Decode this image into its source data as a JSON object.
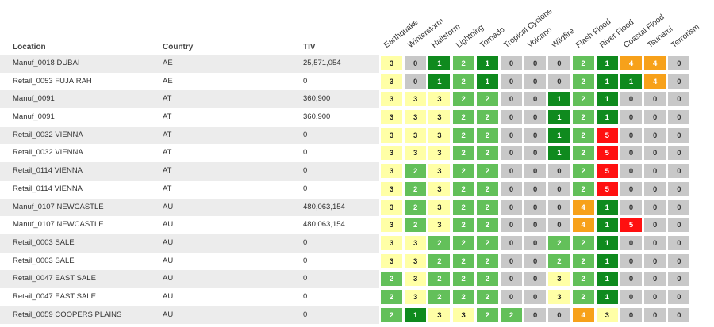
{
  "columns": {
    "location": "Location",
    "country": "Country",
    "tiv": "TIV"
  },
  "hazards": [
    "Earthquake",
    "Winterstorm",
    "Hailstorm",
    "Lightning",
    "Tornado",
    "Tropical Cyclone",
    "Volcano",
    "Wildfire",
    "Flash Flood",
    "River Flood",
    "Coastal Flood",
    "Tsunami",
    "Terrorism"
  ],
  "colors": {
    "0": "#c8c8c8",
    "1": "#0f8a1e",
    "2": "#63c05a",
    "3": "#ffffa6",
    "4": "#f7a11a",
    "5": "#ff1010"
  },
  "rows": [
    {
      "location": "Manuf_0018 DUBAI",
      "country": "AE",
      "tiv": "25,571,054",
      "scores": [
        "3",
        "0",
        "1",
        "2",
        "1",
        "0",
        "0",
        "0",
        "2",
        "1",
        "4",
        "4",
        "0"
      ]
    },
    {
      "location": "Retail_0053 FUJAIRAH",
      "country": "AE",
      "tiv": "0",
      "scores": [
        "3",
        "0",
        "1",
        "2",
        "1",
        "0",
        "0",
        "0",
        "2",
        "1",
        "1",
        "4",
        "0"
      ]
    },
    {
      "location": "Manuf_0091",
      "country": "AT",
      "tiv": "360,900",
      "scores": [
        "3",
        "3",
        "3",
        "2",
        "2",
        "0",
        "0",
        "1",
        "2",
        "1",
        "0",
        "0",
        "0"
      ]
    },
    {
      "location": "Manuf_0091",
      "country": "AT",
      "tiv": "360,900",
      "scores": [
        "3",
        "3",
        "3",
        "2",
        "2",
        "0",
        "0",
        "1",
        "2",
        "1",
        "0",
        "0",
        "0"
      ]
    },
    {
      "location": "Retail_0032 VIENNA",
      "country": "AT",
      "tiv": "0",
      "scores": [
        "3",
        "3",
        "3",
        "2",
        "2",
        "0",
        "0",
        "1",
        "2",
        "5",
        "0",
        "0",
        "0"
      ]
    },
    {
      "location": "Retail_0032 VIENNA",
      "country": "AT",
      "tiv": "0",
      "scores": [
        "3",
        "3",
        "3",
        "2",
        "2",
        "0",
        "0",
        "1",
        "2",
        "5",
        "0",
        "0",
        "0"
      ]
    },
    {
      "location": "Retail_0114 VIENNA",
      "country": "AT",
      "tiv": "0",
      "scores": [
        "3",
        "2",
        "3",
        "2",
        "2",
        "0",
        "0",
        "0",
        "2",
        "5",
        "0",
        "0",
        "0"
      ]
    },
    {
      "location": "Retail_0114 VIENNA",
      "country": "AT",
      "tiv": "0",
      "scores": [
        "3",
        "2",
        "3",
        "2",
        "2",
        "0",
        "0",
        "0",
        "2",
        "5",
        "0",
        "0",
        "0"
      ]
    },
    {
      "location": "Manuf_0107 NEWCASTLE",
      "country": "AU",
      "tiv": "480,063,154",
      "scores": [
        "3",
        "2",
        "3",
        "2",
        "2",
        "0",
        "0",
        "0",
        "4",
        "1",
        "0",
        "0",
        "0"
      ]
    },
    {
      "location": "Manuf_0107 NEWCASTLE",
      "country": "AU",
      "tiv": "480,063,154",
      "scores": [
        "3",
        "2",
        "3",
        "2",
        "2",
        "0",
        "0",
        "0",
        "4",
        "1",
        "5",
        "0",
        "0"
      ]
    },
    {
      "location": "Retail_0003 SALE",
      "country": "AU",
      "tiv": "0",
      "scores": [
        "3",
        "3",
        "2",
        "2",
        "2",
        "0",
        "0",
        "2",
        "2",
        "1",
        "0",
        "0",
        "0"
      ]
    },
    {
      "location": "Retail_0003 SALE",
      "country": "AU",
      "tiv": "0",
      "scores": [
        "3",
        "3",
        "2",
        "2",
        "2",
        "0",
        "0",
        "2",
        "2",
        "1",
        "0",
        "0",
        "0"
      ]
    },
    {
      "location": "Retail_0047 EAST SALE",
      "country": "AU",
      "tiv": "0",
      "scores": [
        "2",
        "3",
        "2",
        "2",
        "2",
        "0",
        "0",
        "3",
        "2",
        "1",
        "0",
        "0",
        "0"
      ]
    },
    {
      "location": "Retail_0047 EAST SALE",
      "country": "AU",
      "tiv": "0",
      "scores": [
        "2",
        "3",
        "2",
        "2",
        "2",
        "0",
        "0",
        "3",
        "2",
        "1",
        "0",
        "0",
        "0"
      ]
    },
    {
      "location": "Retail_0059 COOPERS PLAINS",
      "country": "AU",
      "tiv": "0",
      "scores": [
        "2",
        "1",
        "3",
        "3",
        "2",
        "2",
        "0",
        "0",
        "4",
        "3",
        "0",
        "0",
        "0"
      ]
    }
  ]
}
